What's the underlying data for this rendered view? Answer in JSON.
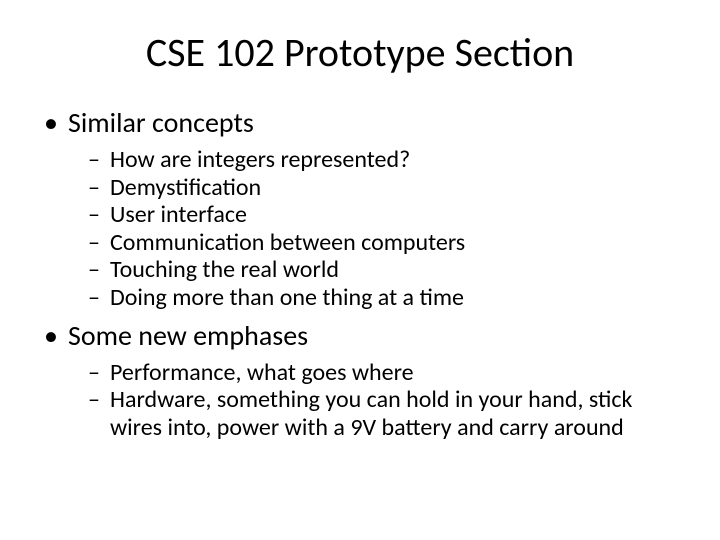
{
  "title": "CSE 102 Prototype Section",
  "bullets": [
    {
      "label": "Similar concepts",
      "sub": [
        "How are integers represented?",
        "Demystification",
        "User interface",
        "Communication between computers",
        "Touching the real world",
        "Doing more than one thing at a time"
      ]
    },
    {
      "label": "Some new emphases",
      "sub": [
        "Performance, what goes where",
        "Hardware, something you can hold in your hand, stick wires into, power with a 9V battery and carry around"
      ]
    }
  ],
  "style": {
    "background_color": "#ffffff",
    "text_color": "#000000",
    "font_family": "Calibri, sans-serif",
    "title_fontsize": 40,
    "level1_fontsize": 28,
    "level2_fontsize": 24,
    "level1_bullet": "•",
    "level2_bullet": "–",
    "slide_width": 720,
    "slide_height": 540
  }
}
